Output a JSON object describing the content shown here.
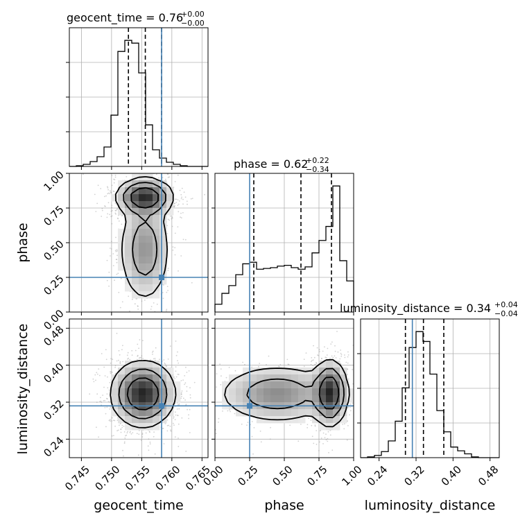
{
  "chart_data": {
    "type": "corner",
    "parameters": [
      {
        "name": "geocent_time",
        "axis_label": "geocent_time",
        "title": {
          "prefix": "geocent_time = ",
          "median": "0.76",
          "plus": "+0.00",
          "minus": "−0.00"
        },
        "range": [
          0.743,
          0.766
        ],
        "ticks": [
          0.745,
          0.75,
          0.755,
          0.76,
          0.765
        ],
        "tick_labels": [
          "0.745",
          "0.750",
          "0.755",
          "0.760",
          "0.765"
        ],
        "quantiles": [
          0.7528,
          0.7556,
          0.7583
        ],
        "truth": 0.7583,
        "hist_edges_start": 0.743,
        "hist_edges_step": 0.00115,
        "hist_counts": [
          0,
          1,
          3,
          7,
          14,
          28,
          74,
          166,
          182,
          178,
          135,
          60,
          24,
          12,
          6,
          3,
          1,
          0,
          0,
          0
        ]
      },
      {
        "name": "phase",
        "axis_label": "phase",
        "title": {
          "prefix": "phase = ",
          "median": "0.62",
          "plus": "+0.22",
          "minus": "−0.34"
        },
        "range": [
          0.0,
          1.0
        ],
        "ticks": [
          0.0,
          0.25,
          0.5,
          0.75,
          1.0
        ],
        "tick_labels": [
          "0.00",
          "0.25",
          "0.50",
          "0.75",
          "1.00"
        ],
        "quantiles": [
          0.28,
          0.62,
          0.84
        ],
        "truth": 0.25,
        "hist_edges_start": 0.0,
        "hist_edges_step": 0.05,
        "hist_counts": [
          10,
          24,
          34,
          48,
          62,
          64,
          55,
          56,
          57,
          59,
          60,
          57,
          55,
          58,
          76,
          92,
          110,
          162,
          66,
          40
        ]
      },
      {
        "name": "luminosity_distance",
        "axis_label": "luminosity_distance",
        "title": {
          "prefix": "luminosity_distance = ",
          "median": "0.34",
          "plus": "+0.04",
          "minus": "−0.04"
        },
        "range": [
          0.2,
          0.5
        ],
        "ticks": [
          0.24,
          0.32,
          0.4,
          0.48
        ],
        "tick_labels": [
          "0.24",
          "0.32",
          "0.40",
          "0.48"
        ],
        "quantiles": [
          0.297,
          0.336,
          0.38
        ],
        "truth": 0.312,
        "hist_edges_start": 0.2,
        "hist_edges_step": 0.015,
        "hist_counts": [
          0,
          1,
          3,
          8,
          22,
          48,
          92,
          145,
          166,
          153,
          110,
          62,
          34,
          14,
          9,
          5,
          1,
          0,
          0,
          0
        ]
      }
    ],
    "density_modes": {
      "phase_vs_geocent_time": [
        {
          "x": 0.7555,
          "y": 0.83,
          "sx": 0.0023,
          "sy": 0.065,
          "w": 1.0
        },
        {
          "x": 0.7555,
          "y": 0.45,
          "sx": 0.0022,
          "sy": 0.2,
          "w": 0.5
        }
      ],
      "luminosity_distance_vs_geocent_time": [
        {
          "x": 0.7552,
          "y": 0.338,
          "sx": 0.0026,
          "sy": 0.035,
          "w": 1.0
        }
      ],
      "luminosity_distance_vs_phase": [
        {
          "x": 0.83,
          "y": 0.34,
          "sx": 0.06,
          "sy": 0.035,
          "w": 1.0
        },
        {
          "x": 0.45,
          "y": 0.338,
          "sx": 0.22,
          "sy": 0.032,
          "w": 0.55
        }
      ]
    },
    "grid": true,
    "truth_color": "#4682b4",
    "histogram_color": "#000000"
  }
}
